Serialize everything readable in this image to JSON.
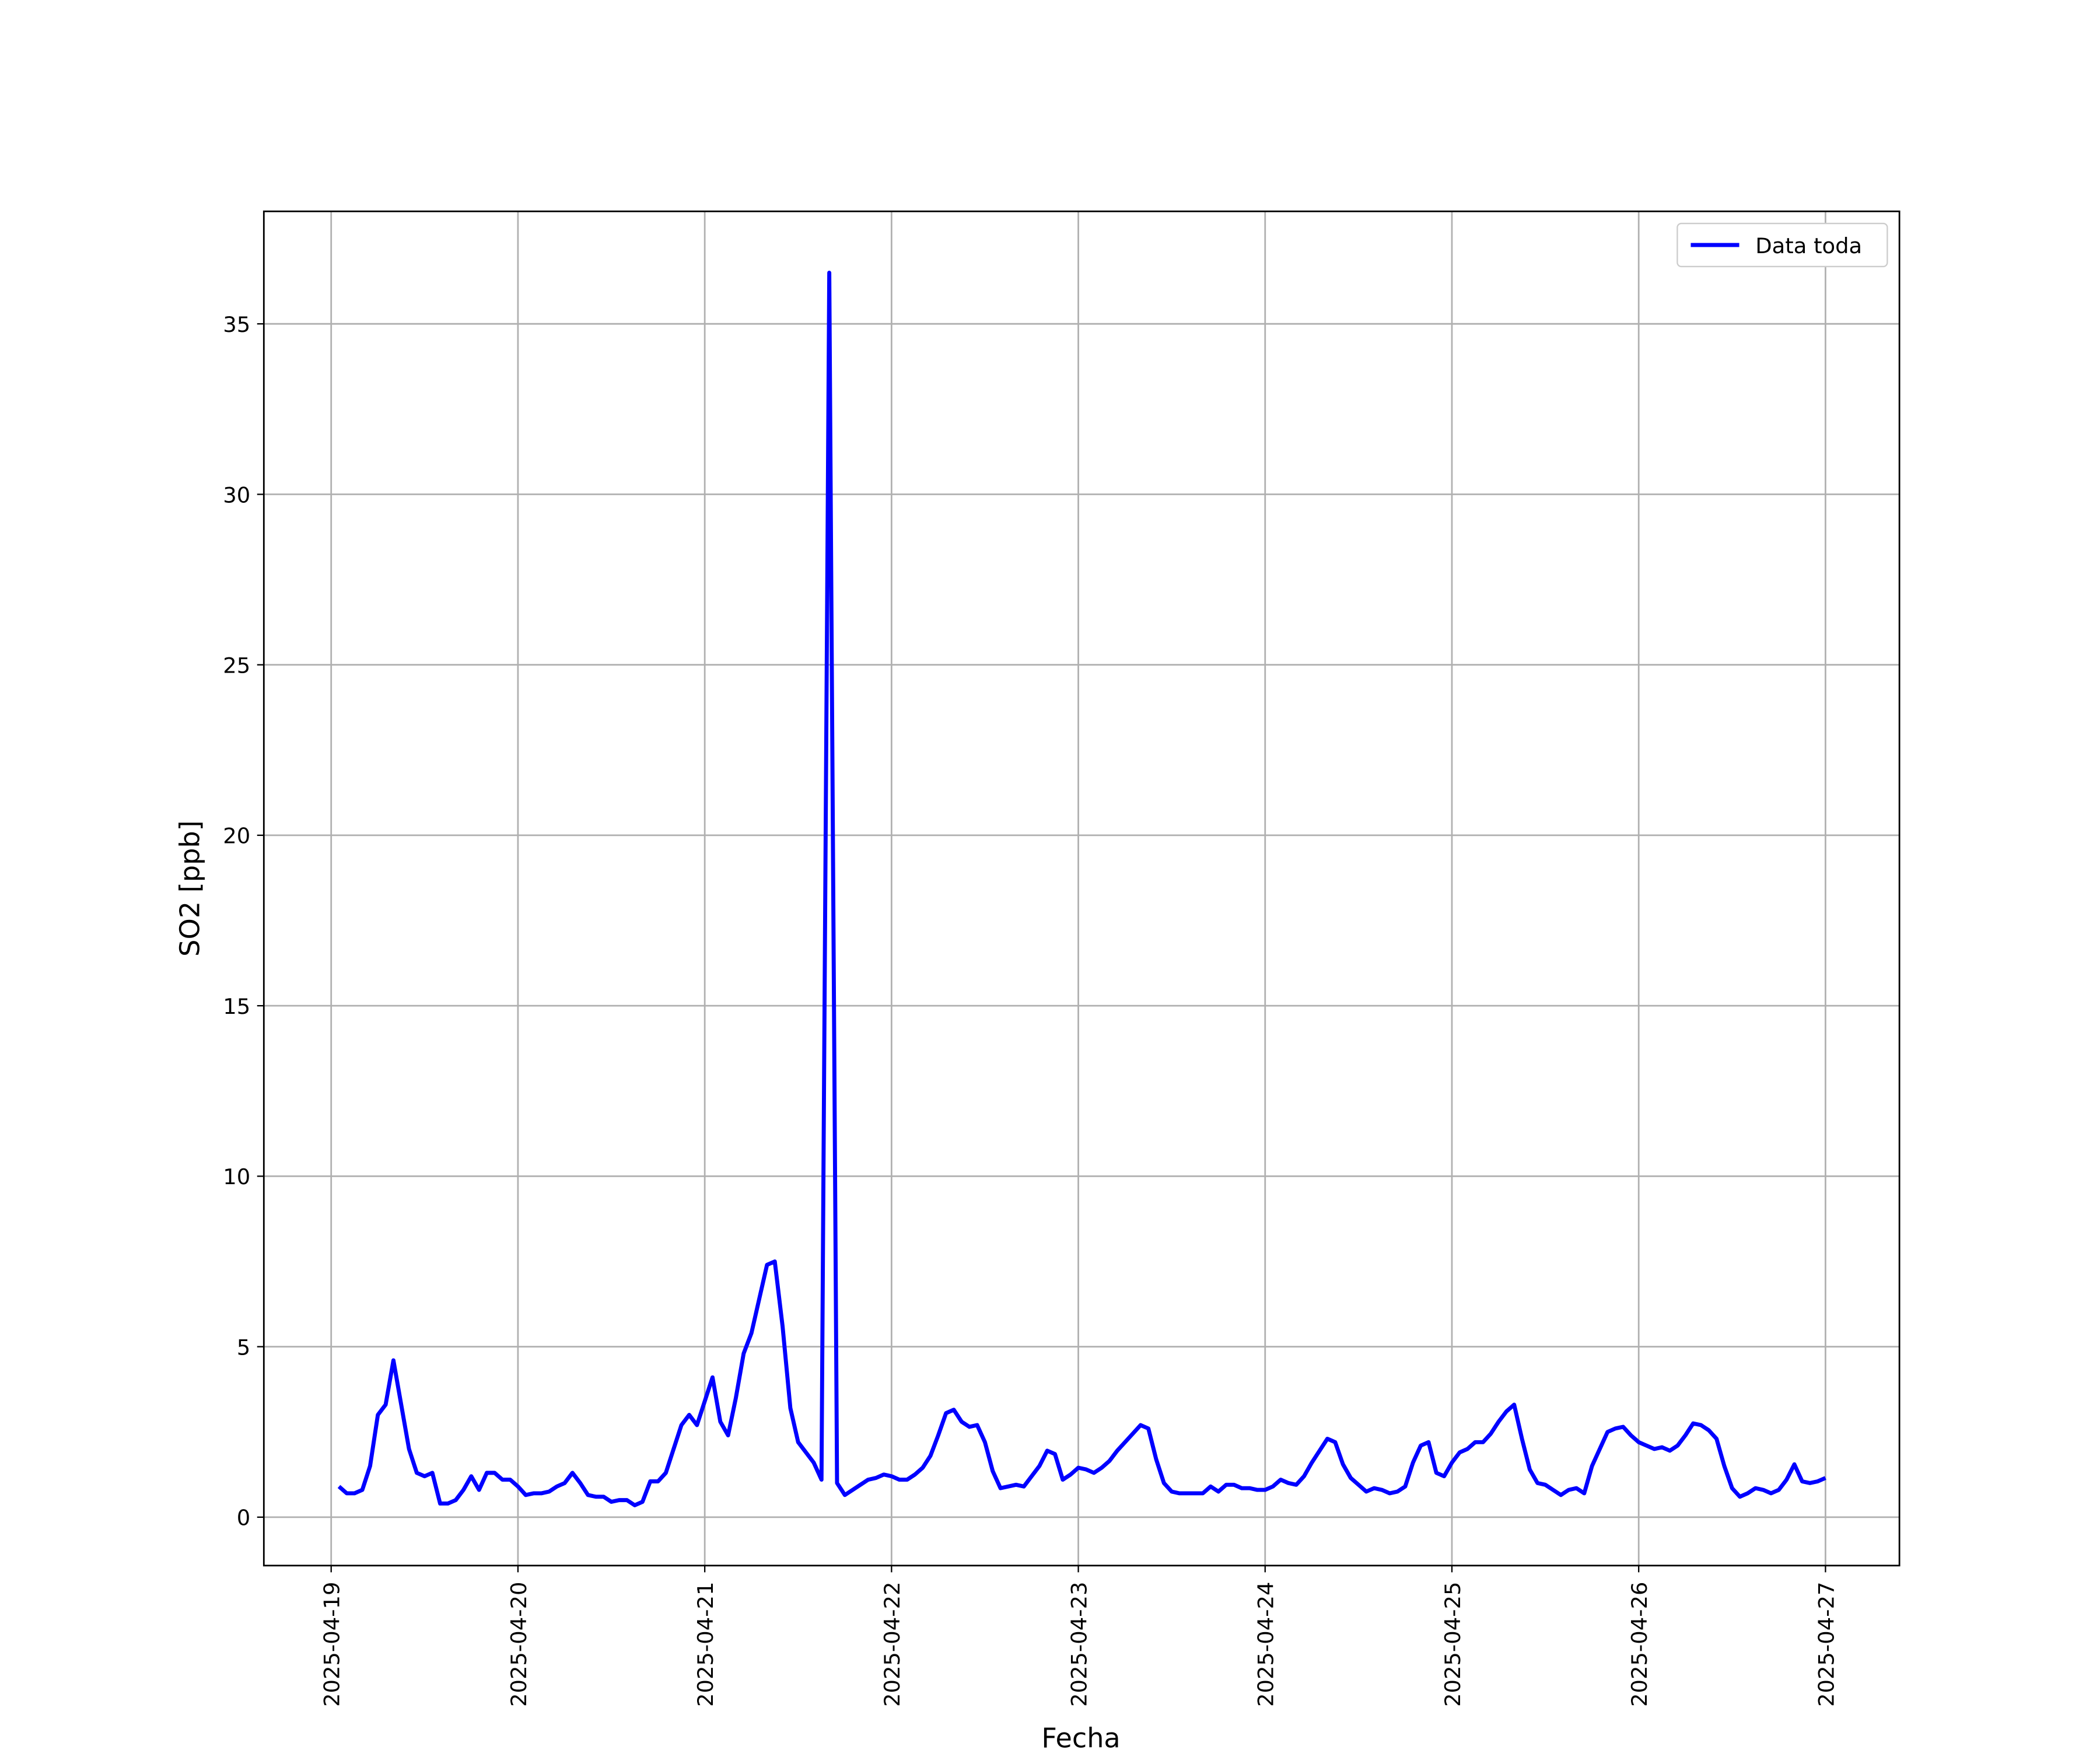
{
  "chart_data": {
    "type": "line",
    "xlabel": "Fecha",
    "ylabel": "SO2 [ppb]",
    "x": [
      1,
      2,
      3,
      4,
      5,
      6,
      7,
      8,
      9,
      10,
      11,
      12,
      13,
      14,
      15,
      16,
      17,
      18,
      19,
      20,
      21,
      22,
      23,
      24,
      25,
      26,
      27,
      28,
      29,
      30,
      31,
      32,
      33,
      34,
      35,
      36,
      37,
      38,
      39,
      40,
      41,
      42,
      43,
      44,
      45,
      46,
      47,
      48,
      49,
      50,
      51,
      52,
      53,
      54,
      55,
      56,
      57,
      58,
      59,
      60,
      61,
      62,
      63,
      64,
      65,
      66,
      67,
      68,
      69,
      70,
      71,
      72,
      73,
      74,
      75,
      76,
      77,
      78,
      79,
      80,
      81,
      82,
      83,
      84,
      85,
      86,
      87,
      88,
      89,
      90,
      91,
      92,
      93,
      94,
      95,
      96,
      97,
      98,
      99,
      100,
      101,
      102,
      103,
      104,
      105,
      106,
      107,
      108,
      109,
      110,
      111,
      112,
      113,
      114,
      115,
      116,
      117,
      118,
      119,
      120,
      121,
      122,
      123,
      124,
      125,
      126,
      127,
      128,
      129,
      130,
      131,
      132,
      133,
      134,
      135,
      136,
      137,
      138,
      139,
      140,
      141,
      142,
      143,
      144,
      145,
      146,
      147,
      148,
      149,
      150,
      151,
      152,
      153,
      154,
      155,
      156,
      157,
      158,
      159,
      160,
      161,
      162,
      163,
      164,
      165,
      166,
      167,
      168,
      169,
      170,
      171,
      172,
      173,
      174,
      175,
      176,
      177,
      178,
      179,
      180,
      181,
      182,
      183,
      184,
      185,
      186,
      187,
      188,
      189,
      190,
      191,
      192
    ],
    "series": [
      {
        "name": "Data toda",
        "color": "#0000ff",
        "values": [
          0.9,
          0.7,
          0.7,
          0.8,
          1.5,
          3.0,
          3.3,
          4.6,
          3.3,
          2.0,
          1.3,
          1.2,
          1.3,
          0.4,
          0.4,
          0.5,
          0.8,
          1.2,
          0.8,
          1.3,
          1.3,
          1.1,
          1.1,
          0.9,
          0.65,
          0.7,
          0.7,
          0.75,
          0.9,
          1.0,
          1.3,
          1.0,
          0.65,
          0.6,
          0.6,
          0.45,
          0.5,
          0.5,
          0.35,
          0.45,
          1.05,
          1.05,
          1.3,
          2.0,
          2.7,
          3.0,
          2.7,
          3.4,
          4.1,
          2.8,
          2.4,
          3.5,
          4.8,
          5.4,
          6.4,
          7.4,
          7.5,
          5.6,
          3.2,
          2.2,
          1.9,
          1.6,
          1.1,
          36.5,
          1.0,
          0.65,
          0.8,
          0.95,
          1.1,
          1.15,
          1.25,
          1.2,
          1.1,
          1.1,
          1.25,
          1.45,
          1.8,
          2.4,
          3.05,
          3.15,
          2.8,
          2.65,
          2.7,
          2.2,
          1.35,
          0.85,
          0.9,
          0.95,
          0.9,
          1.2,
          1.5,
          1.95,
          1.85,
          1.1,
          1.25,
          1.45,
          1.4,
          1.3,
          1.45,
          1.65,
          1.95,
          2.2,
          2.45,
          2.7,
          2.6,
          1.7,
          1.0,
          0.75,
          0.7,
          0.7,
          0.7,
          0.7,
          0.9,
          0.75,
          0.95,
          0.95,
          0.85,
          0.85,
          0.8,
          0.8,
          0.9,
          1.1,
          1.0,
          0.95,
          1.2,
          1.6,
          1.95,
          2.3,
          2.2,
          1.55,
          1.15,
          0.95,
          0.75,
          0.85,
          0.8,
          0.7,
          0.75,
          0.9,
          1.6,
          2.1,
          2.2,
          1.3,
          1.2,
          1.6,
          1.9,
          2.0,
          2.2,
          2.2,
          2.45,
          2.8,
          3.1,
          3.3,
          2.3,
          1.4,
          1.0,
          0.95,
          0.8,
          0.65,
          0.8,
          0.85,
          0.7,
          1.5,
          2.0,
          2.5,
          2.6,
          2.65,
          2.4,
          2.2,
          2.1,
          2.0,
          2.05,
          1.95,
          2.1,
          2.4,
          2.75,
          2.7,
          2.55,
          2.3,
          1.5,
          0.85,
          0.6,
          0.7,
          0.85,
          0.8,
          0.7,
          0.8,
          1.1,
          1.55,
          1.05,
          1.0,
          1.05,
          1.15
        ]
      }
    ],
    "xlim": [
      -8.65,
      201.5
    ],
    "xticks": [
      {
        "value": 0,
        "label": "2025-04-19"
      },
      {
        "value": 24,
        "label": "2025-04-20"
      },
      {
        "value": 48,
        "label": "2025-04-21"
      },
      {
        "value": 72,
        "label": "2025-04-22"
      },
      {
        "value": 96,
        "label": "2025-04-23"
      },
      {
        "value": 120,
        "label": "2025-04-24"
      },
      {
        "value": 144,
        "label": "2025-04-25"
      },
      {
        "value": 168,
        "label": "2025-04-26"
      },
      {
        "value": 192,
        "label": "2025-04-27"
      }
    ],
    "ylim": [
      -1.42,
      38.3
    ],
    "yticks": [
      0,
      5,
      10,
      15,
      20,
      25,
      30,
      35
    ],
    "grid": true,
    "legend": "upper right"
  }
}
